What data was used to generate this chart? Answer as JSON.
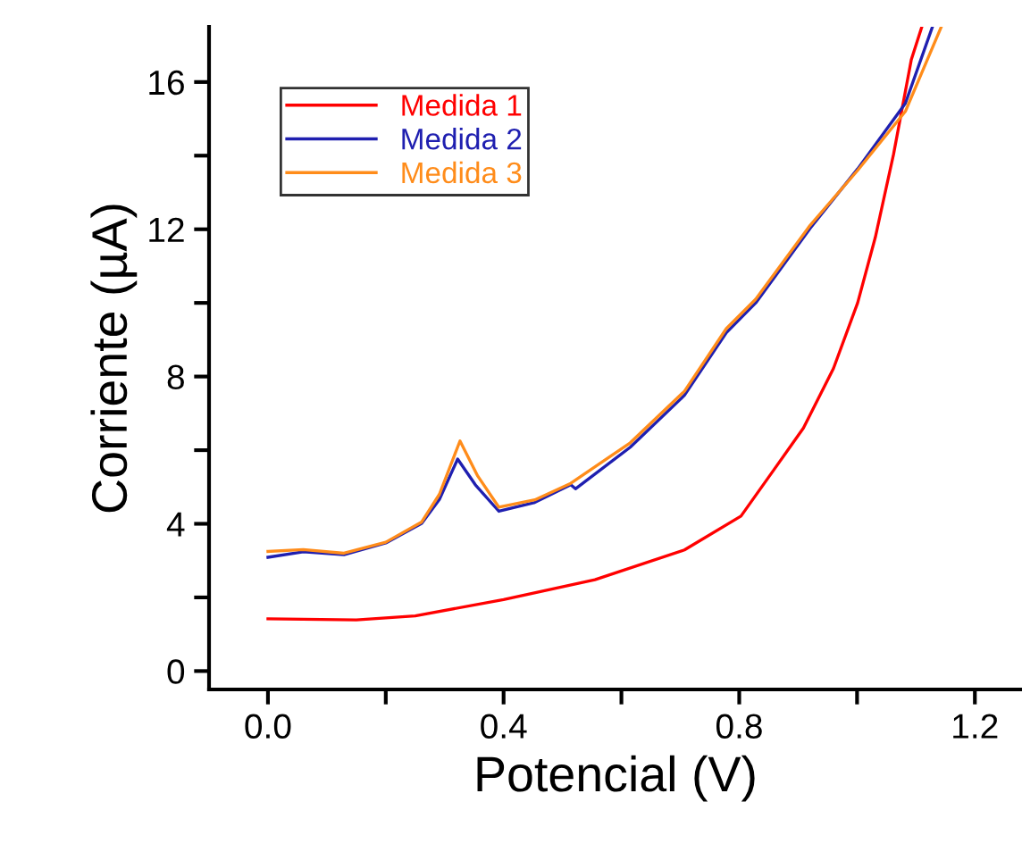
{
  "chart_data": {
    "type": "line",
    "xlabel": "Potencial (V)",
    "ylabel": "Corriente (µA)",
    "xlim": [
      -0.1,
      1.28
    ],
    "ylim": [
      -0.5,
      17.5
    ],
    "xticks": [
      {
        "value": 0.0,
        "label": "0.0"
      },
      {
        "value": 0.2,
        "label": null
      },
      {
        "value": 0.4,
        "label": "0.4"
      },
      {
        "value": 0.6,
        "label": null
      },
      {
        "value": 0.8,
        "label": "0.8"
      },
      {
        "value": 1.0,
        "label": null
      },
      {
        "value": 1.2,
        "label": "1.2"
      }
    ],
    "yticks": [
      0,
      {
        "value": 2,
        "label": null
      },
      4,
      {
        "value": 6,
        "label": null
      },
      8,
      {
        "value": 10,
        "label": null
      },
      12,
      {
        "value": 14,
        "label": null
      },
      16
    ],
    "grid": false,
    "legend": "top left",
    "marker": "none",
    "line_style": "solid",
    "series": [
      {
        "name": "Medida 1",
        "color": "#ff0000",
        "x": [
          0,
          0.15,
          0.25,
          0.4,
          0.555,
          0.707,
          0.803,
          0.859,
          0.909,
          0.96,
          1.001,
          1.031,
          1.062,
          1.092,
          1.11
        ],
        "values": [
          1.42,
          1.39,
          1.5,
          1.94,
          2.48,
          3.29,
          4.21,
          5.47,
          6.6,
          8.22,
          10.0,
          11.78,
          14.04,
          16.6,
          17.5
        ]
      },
      {
        "name": "Medida 2",
        "color": "#1f1fb0",
        "x": [
          0,
          0.06,
          0.129,
          0.2,
          0.261,
          0.291,
          0.322,
          0.352,
          0.392,
          0.453,
          0.514,
          0.522,
          0.615,
          0.707,
          0.778,
          0.828,
          0.92,
          1.001,
          1.082,
          1.128
        ],
        "values": [
          3.09,
          3.24,
          3.16,
          3.48,
          4.01,
          4.66,
          5.76,
          5.06,
          4.34,
          4.58,
          5.06,
          4.95,
          6.08,
          7.49,
          9.19,
          10.0,
          12.02,
          13.64,
          15.42,
          17.5
        ]
      },
      {
        "name": "Medida 3",
        "color": "#ff8c1a",
        "x": [
          0,
          0.06,
          0.129,
          0.2,
          0.261,
          0.291,
          0.326,
          0.356,
          0.392,
          0.453,
          0.514,
          0.615,
          0.707,
          0.778,
          0.828,
          0.92,
          1.001,
          1.082,
          1.143
        ],
        "values": [
          3.25,
          3.3,
          3.2,
          3.5,
          4.05,
          4.8,
          6.25,
          5.3,
          4.45,
          4.65,
          5.1,
          6.2,
          7.6,
          9.3,
          10.1,
          12.1,
          13.6,
          15.2,
          17.5
        ]
      }
    ]
  }
}
